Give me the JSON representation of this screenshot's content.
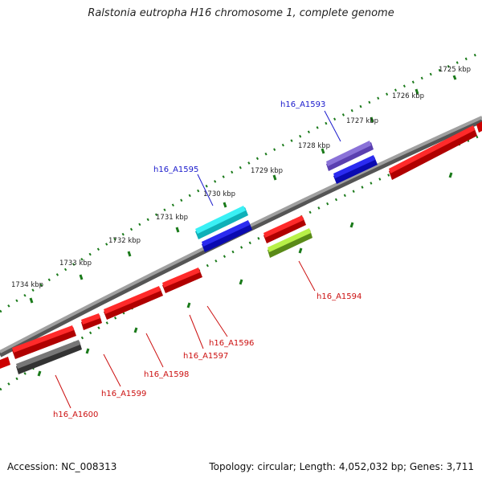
{
  "title": "Ralstonia eutropha H16 chromosome 1, complete genome",
  "footer": {
    "accession": "Accession: NC_008313",
    "stats": "Topology: circular; Length: 4,052,032 bp; Genes: 3,711"
  },
  "ruler": {
    "labels": [
      "1725 kbp",
      "1726 kbp",
      "1727 kbp",
      "1728 kbp",
      "1729 kbp",
      "1730 kbp",
      "1731 kbp",
      "1732 kbp",
      "1733 kbp",
      "1734 kbp"
    ],
    "tick_color": "#1a7a1a"
  },
  "gene_labels": {
    "h16_A1593": "h16_A1593",
    "h16_A1594": "h16_A1594",
    "h16_A1595": "h16_A1595",
    "h16_A1596": "h16_A1596",
    "h16_A1597": "h16_A1597",
    "h16_A1598": "h16_A1598",
    "h16_A1599": "h16_A1599",
    "h16_A1600": "h16_A1600"
  },
  "colors": {
    "forward_label": "#1a1acc",
    "reverse_label": "#cc1010",
    "gene_red": "#f20000",
    "gene_blue": "#1a1ae6",
    "gene_purple": "#7a5ccc",
    "gene_cyan": "#19e0e8",
    "gene_green": "#9ee03a",
    "gene_gray": "#666666",
    "backbone": "#8a8a8a"
  }
}
